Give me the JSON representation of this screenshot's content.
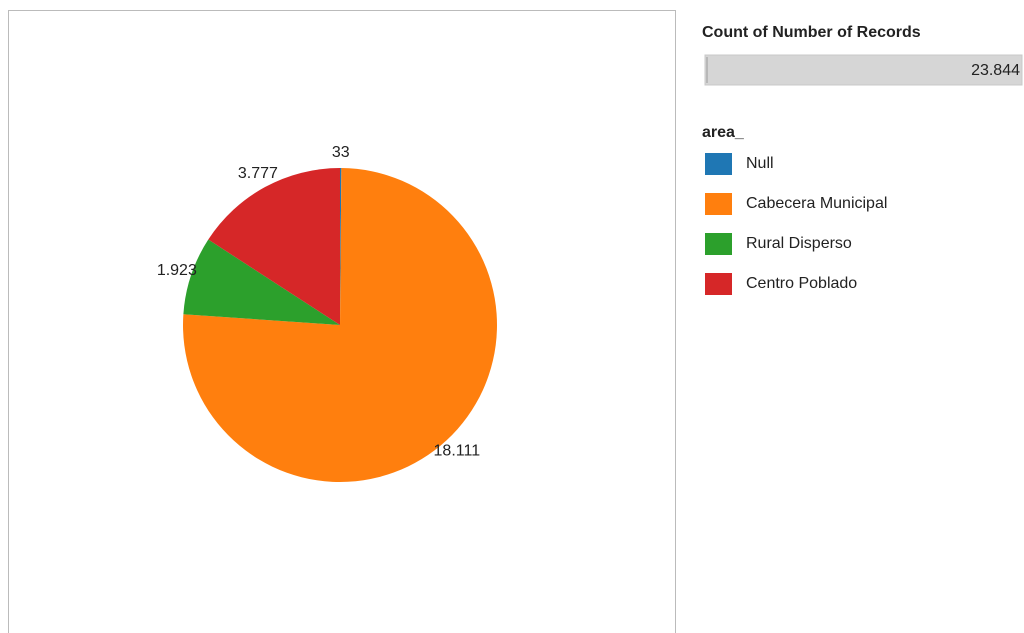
{
  "chart_data": {
    "type": "pie",
    "categories": [
      "Null",
      "Cabecera Municipal",
      "Rural Disperso",
      "Centro Poblado"
    ],
    "values": [
      33,
      18111,
      1923,
      3777
    ],
    "value_labels": [
      "33",
      "18.111",
      "1.923",
      "3.777"
    ],
    "colors": [
      "#1f77b4",
      "#ff7f0e",
      "#2ca02c",
      "#d62728"
    ],
    "legend_title": "area_",
    "size_legend": {
      "title": "Count of Number of Records",
      "value": 23844,
      "label": "23.844"
    }
  }
}
